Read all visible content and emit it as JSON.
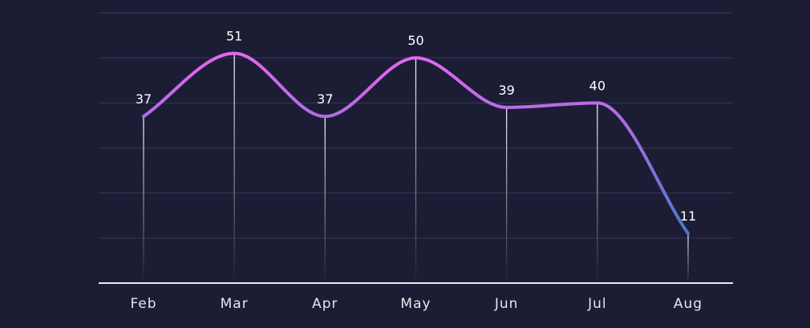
{
  "chart_data": {
    "type": "line",
    "title": "",
    "xlabel": "",
    "ylabel": "",
    "categories": [
      "Feb",
      "Mar",
      "Apr",
      "May",
      "Jun",
      "Jul",
      "Aug"
    ],
    "series": [
      {
        "values": [
          37,
          51,
          37,
          50,
          39,
          40,
          11
        ]
      }
    ],
    "ylim": [
      0,
      60
    ],
    "grid": true,
    "smooth": true,
    "data_labels": true,
    "colors": {
      "background": "#1c1d35",
      "grid": "#35375a",
      "line_start": "#4a78c8",
      "line_end": "#e866f2",
      "drop_line": "#ffffff",
      "axis": "#e8e8f0",
      "text": "#ffffff"
    }
  }
}
